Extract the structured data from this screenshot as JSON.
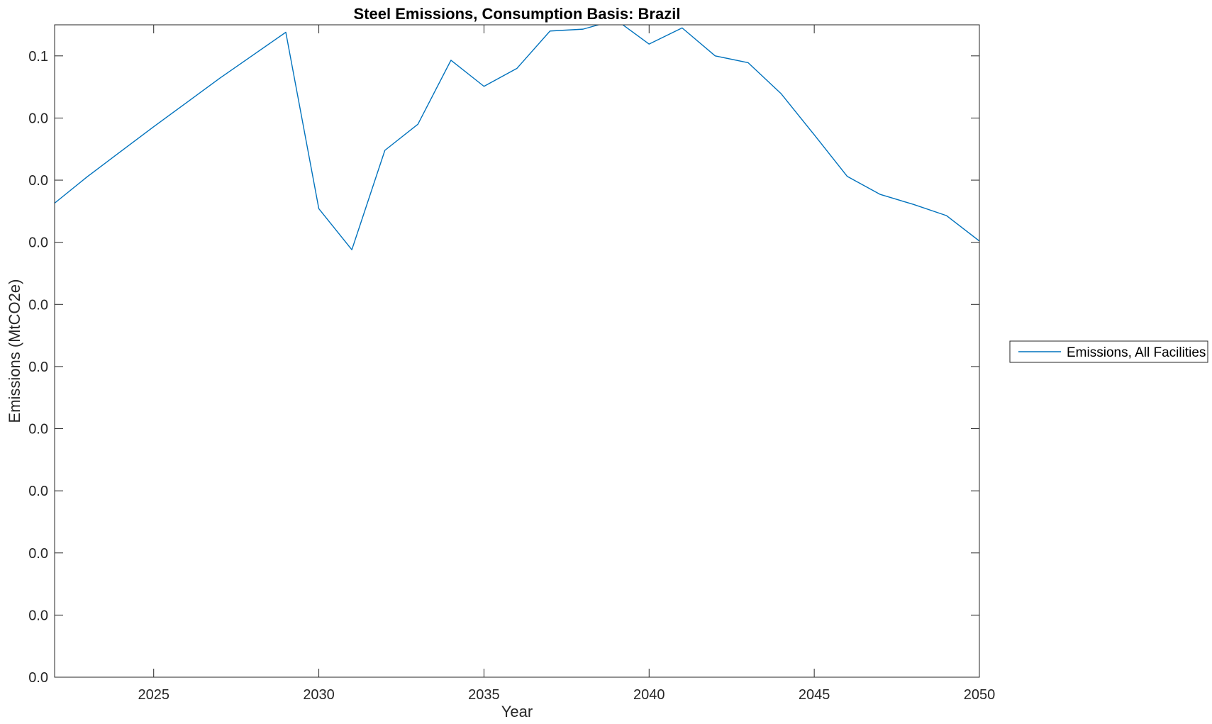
{
  "chart_data": {
    "type": "line",
    "title": "Steel Emissions, Consumption Basis: Brazil",
    "xlabel": "Year",
    "ylabel": "Emissions (MtCO2e)",
    "xlim": [
      2022,
      2050
    ],
    "ylim": [
      0,
      0.105
    ],
    "x_ticks": [
      2025,
      2030,
      2035,
      2040,
      2045,
      2050
    ],
    "x_tick_labels": [
      "2025",
      "2030",
      "2035",
      "2040",
      "2045",
      "2050"
    ],
    "y_ticks": [
      0,
      0.01,
      0.02,
      0.03,
      0.04,
      0.05,
      0.06,
      0.07,
      0.08,
      0.09,
      0.1
    ],
    "y_tick_labels": [
      "0.0",
      "0.0",
      "0.0",
      "0.0",
      "0.0",
      "0.0",
      "0.0",
      "0.0",
      "0.0",
      "0.0",
      "0.1"
    ],
    "grid": false,
    "legend_position": "outside-right",
    "series": [
      {
        "name": "Emissions, All Facilities",
        "color": "#0072BD",
        "x": [
          2022,
          2023,
          2024,
          2025,
          2026,
          2027,
          2028,
          2029,
          2030,
          2031,
          2032,
          2033,
          2034,
          2035,
          2036,
          2037,
          2038,
          2039,
          2040,
          2041,
          2042,
          2043,
          2044,
          2045,
          2046,
          2047,
          2048,
          2049,
          2050
        ],
        "y": [
          0.0763,
          0.0806,
          0.0846,
          0.0886,
          0.0925,
          0.0964,
          0.1001,
          0.1038,
          0.0754,
          0.0688,
          0.0848,
          0.089,
          0.0993,
          0.0951,
          0.098,
          0.104,
          0.1043,
          0.1058,
          0.1019,
          0.1045,
          0.1,
          0.0989,
          0.0939,
          0.0873,
          0.0806,
          0.0777,
          0.0761,
          0.0743,
          0.0702
        ]
      }
    ]
  }
}
